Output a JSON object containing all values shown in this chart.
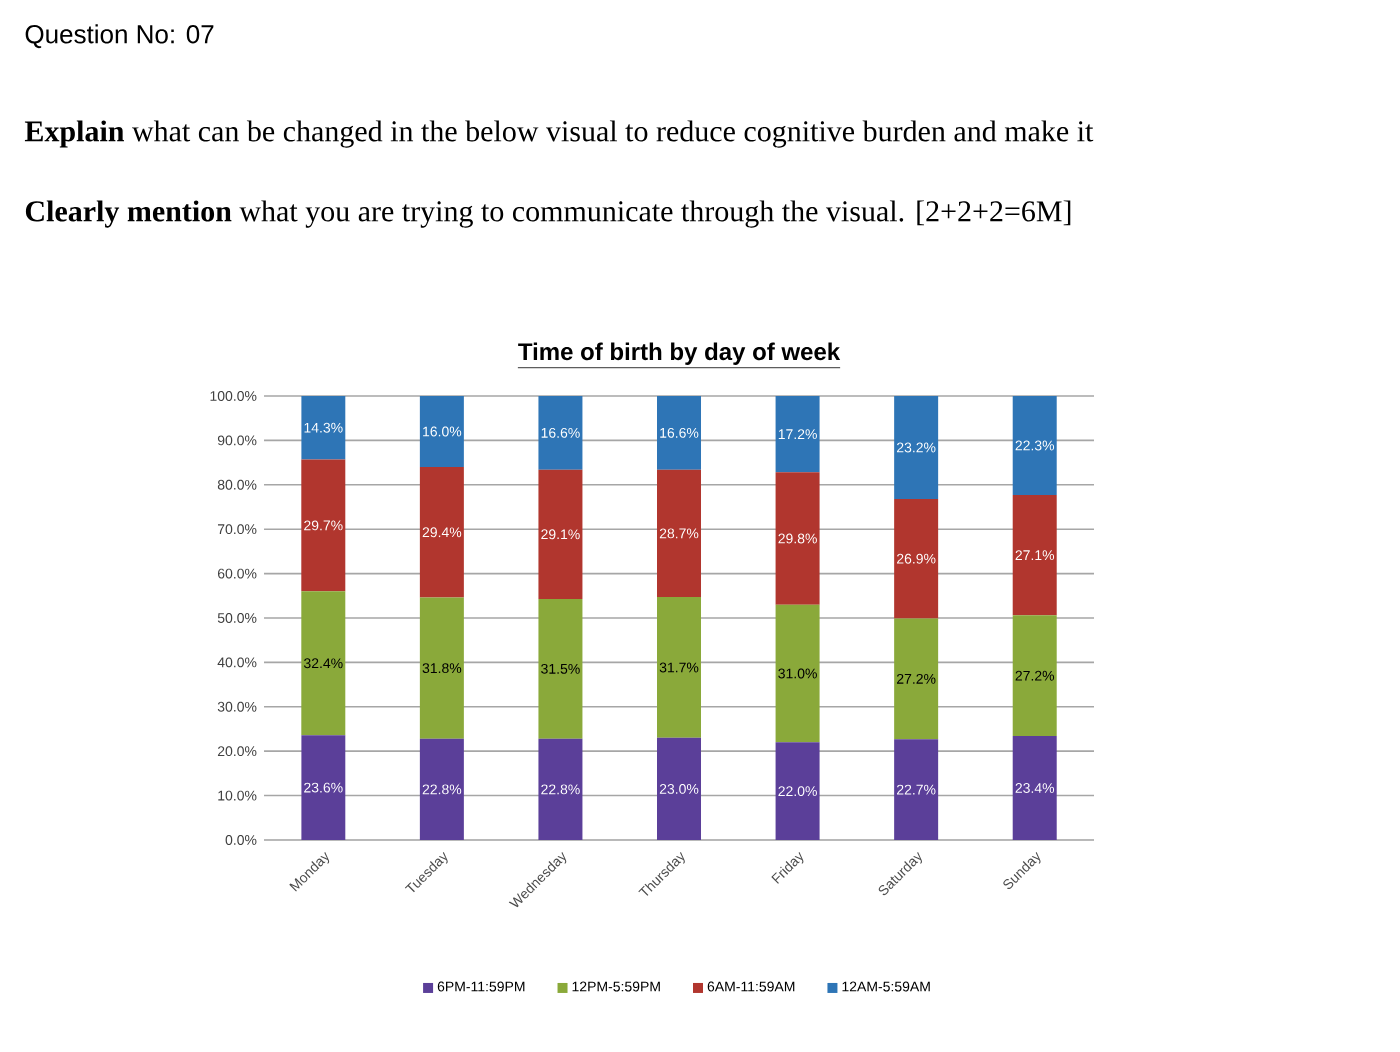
{
  "chart_data": {
    "type": "bar",
    "stacked": true,
    "title": "Time of birth by day of week",
    "annotations": [
      "Question No: 07",
      "**Explain** what can be changed in the below visual to reduce cognitive burden and make it",
      "**Clearly mention** what you are trying to communicate through the visual.  [2+2+2=6M]"
    ],
    "categories": [
      "Monday",
      "Tuesday",
      "Wednesday",
      "Thursday",
      "Friday",
      "Saturday",
      "Sunday"
    ],
    "series": [
      {
        "name": "6PM-11:59PM",
        "color": "#5b3f99",
        "values": [
          23.6,
          22.8,
          22.8,
          23.0,
          22.0,
          22.7,
          23.4
        ],
        "value_labels": [
          "23.6%",
          "22.8%",
          "22.8%",
          "23.0%",
          "22.0%",
          "22.7%",
          "23.4%"
        ]
      },
      {
        "name": "12PM-5:59PM",
        "color": "#8aa93a",
        "values": [
          32.4,
          31.8,
          31.5,
          31.7,
          31.0,
          27.2,
          27.2
        ],
        "value_labels": [
          "32.4%",
          "31.8%",
          "31.5%",
          "31.7%",
          "31.0%",
          "27.2%",
          "27.2%"
        ]
      },
      {
        "name": "6AM-11:59AM",
        "color": "#b1362e",
        "values": [
          29.7,
          29.4,
          29.1,
          28.7,
          29.8,
          26.9,
          27.1
        ],
        "value_labels": [
          "29.7%",
          "29.4%",
          "29.1%",
          "28.7%",
          "29.8%",
          "26.9%",
          "27.1%"
        ]
      },
      {
        "name": "12AM-5:59AM",
        "color": "#2e75b6",
        "values": [
          14.3,
          16.0,
          16.6,
          16.6,
          17.2,
          23.2,
          22.3
        ],
        "value_labels": [
          "14.3%",
          "16.0%",
          "16.6%",
          "16.6%",
          "17.2%",
          "23.2%",
          "22.3%"
        ]
      }
    ],
    "ylim": [
      0,
      100
    ],
    "yticks": [
      {
        "value": 0,
        "label": "0.0%"
      },
      {
        "value": 10,
        "label": "10.0%"
      },
      {
        "value": 20,
        "label": "20.0%"
      },
      {
        "value": 30,
        "label": "30.0%"
      },
      {
        "value": 40,
        "label": "40.0%"
      },
      {
        "value": 50,
        "label": "50.0%"
      },
      {
        "value": 60,
        "label": "60.0%"
      },
      {
        "value": 70,
        "label": "70.0%"
      },
      {
        "value": 80,
        "label": "80.0%"
      },
      {
        "value": 90,
        "label": "90.0%"
      },
      {
        "value": 100,
        "label": "100.0%"
      }
    ],
    "grid": "y",
    "legend": "bottom"
  }
}
